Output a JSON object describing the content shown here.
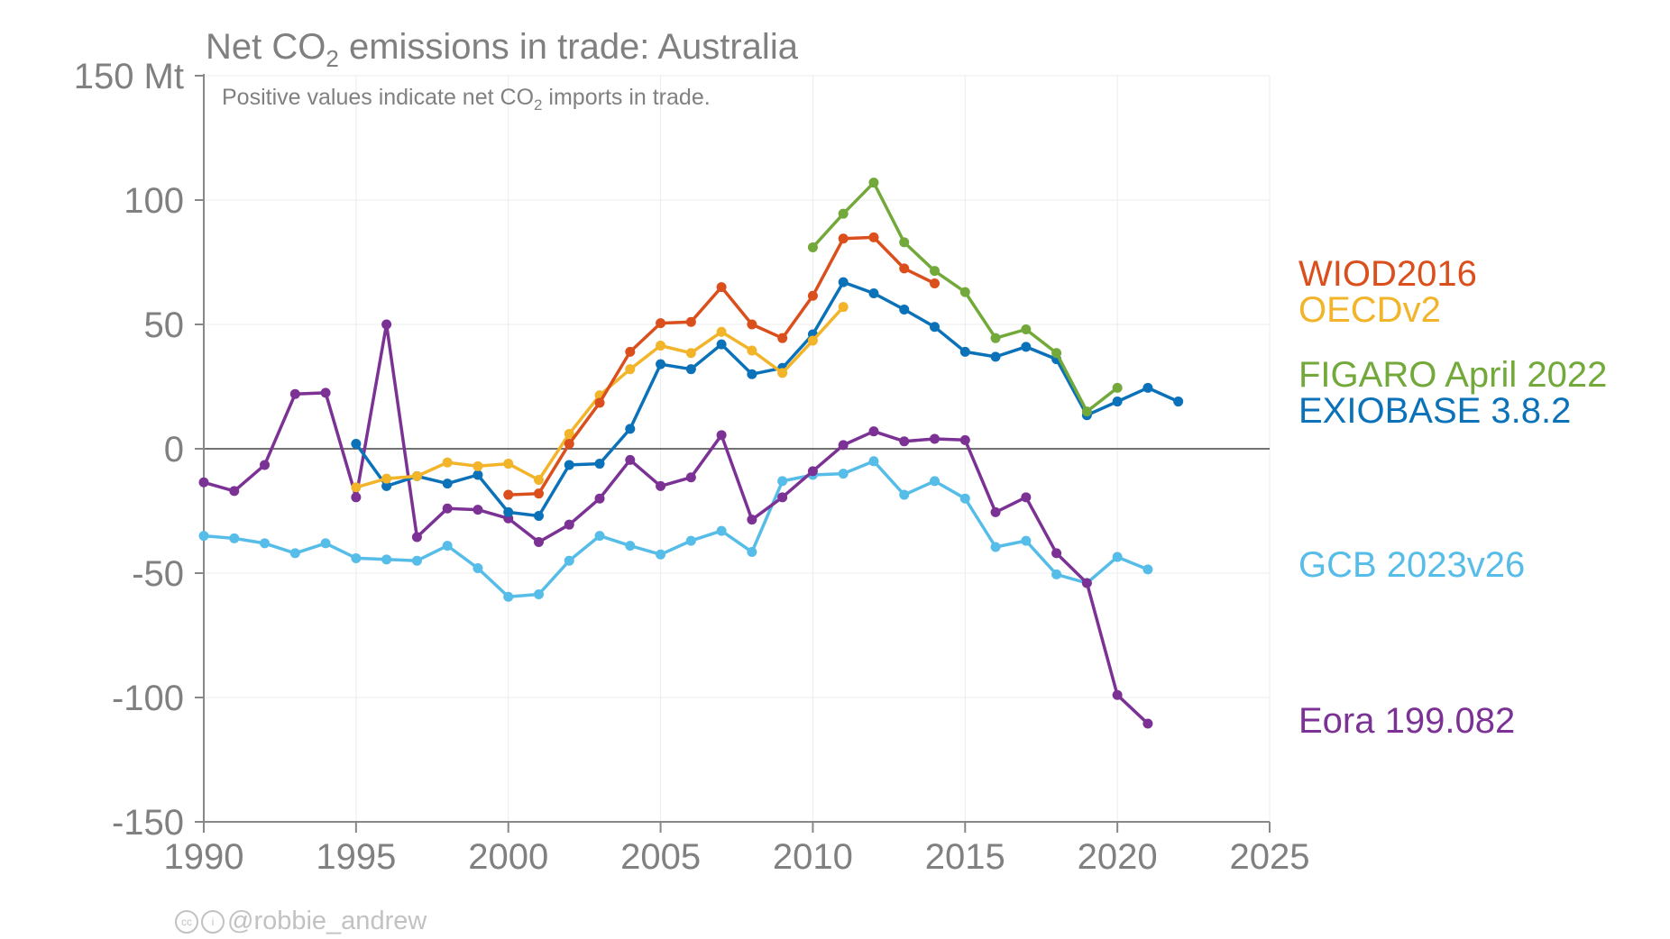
{
  "title_main": "Net CO",
  "title_sub": "2",
  "title_rest": " emissions in trade: Australia",
  "subtitle_main": "Positive values indicate net CO",
  "subtitle_sub": "2",
  "subtitle_rest": " imports in trade.",
  "credit": "@robbie_andrew",
  "chart_data": {
    "type": "line",
    "xlim": [
      1990,
      2025
    ],
    "ylim": [
      -150,
      150
    ],
    "x_ticks": [
      1990,
      1995,
      2000,
      2005,
      2010,
      2015,
      2020,
      2025
    ],
    "y_ticks": [
      150,
      100,
      50,
      0,
      -50,
      -100,
      -150
    ],
    "y_tick_labels": [
      "150 Mt",
      "100",
      "50",
      "0",
      "-50",
      "-100",
      "-150"
    ],
    "grid": true,
    "legend_position": "right",
    "series": [
      {
        "name": "GCB 2023v26",
        "color": "#56bce8",
        "x": [
          1990,
          1991,
          1992,
          1993,
          1994,
          1995,
          1996,
          1997,
          1998,
          1999,
          2000,
          2001,
          2002,
          2003,
          2004,
          2005,
          2006,
          2007,
          2008,
          2009,
          2010,
          2011,
          2012,
          2013,
          2014,
          2015,
          2016,
          2017,
          2018,
          2019,
          2020,
          2021
        ],
        "y": [
          -35,
          -36,
          -38,
          -42,
          -38,
          -44,
          -44.5,
          -45,
          -39,
          -48,
          -59.5,
          -58.5,
          -45,
          -35,
          -39,
          -42.5,
          -37,
          -33,
          -41.5,
          -13,
          -10.5,
          -10,
          -5,
          -18.5,
          -13,
          -20,
          -39.5,
          -37,
          -50.5,
          -54,
          -43.5,
          -48.5
        ]
      },
      {
        "name": "Eora 199.082",
        "color": "#7b3294",
        "x": [
          1990,
          1991,
          1992,
          1993,
          1994,
          1995,
          1996,
          1997,
          1998,
          1999,
          2000,
          2001,
          2002,
          2003,
          2004,
          2005,
          2006,
          2007,
          2008,
          2009,
          2010,
          2011,
          2012,
          2013,
          2014,
          2015,
          2016,
          2017,
          2018,
          2019,
          2020,
          2021
        ],
        "y": [
          -13.5,
          -17,
          -6.5,
          22,
          22.5,
          -19.5,
          50,
          -35.5,
          -24,
          -24.5,
          -28,
          -37.5,
          -30.5,
          -20,
          -4.5,
          -15,
          -11.5,
          5.5,
          -28.5,
          -19.5,
          -9,
          1.5,
          7,
          3,
          4,
          3.5,
          -25.5,
          -19.5,
          -42,
          -54,
          -99,
          -110.5
        ]
      },
      {
        "name": "EXIOBASE 3.8.2",
        "color": "#0b72b9",
        "x": [
          1995,
          1996,
          1997,
          1998,
          1999,
          2000,
          2001,
          2002,
          2003,
          2004,
          2005,
          2006,
          2007,
          2008,
          2009,
          2010,
          2011,
          2012,
          2013,
          2014,
          2015,
          2016,
          2017,
          2018,
          2019,
          2020,
          2021,
          2022
        ],
        "y": [
          2,
          -15,
          -11,
          -14,
          -10.5,
          -25.5,
          -27,
          -6.5,
          -6,
          8,
          34,
          32,
          42,
          30,
          32.5,
          46,
          67,
          62.5,
          56,
          49,
          39,
          37,
          41,
          36,
          13.5,
          19,
          24.5,
          19
        ]
      },
      {
        "name": "OECDv2",
        "color": "#f2b429",
        "x": [
          1995,
          1996,
          1997,
          1998,
          1999,
          2000,
          2001,
          2002,
          2003,
          2004,
          2005,
          2006,
          2007,
          2008,
          2009,
          2010,
          2011
        ],
        "y": [
          -15.5,
          -12,
          -11,
          -5.5,
          -7,
          -6,
          -12.5,
          6,
          21.5,
          32,
          41.5,
          38.5,
          47,
          39.5,
          30.5,
          43.5,
          57
        ]
      },
      {
        "name": "WIOD2016",
        "color": "#db4f1d",
        "x": [
          2000,
          2001,
          2002,
          2003,
          2004,
          2005,
          2006,
          2007,
          2008,
          2009,
          2010,
          2011,
          2012,
          2013,
          2014
        ],
        "y": [
          -18.5,
          -18,
          2,
          18.5,
          39,
          50.5,
          51,
          65,
          50,
          44.5,
          61.5,
          84.5,
          85,
          72.5,
          66.5
        ]
      },
      {
        "name": "FIGARO April 2022",
        "color": "#72a93a",
        "x": [
          2010,
          2011,
          2012,
          2013,
          2014,
          2015,
          2016,
          2017,
          2018,
          2019,
          2020
        ],
        "y": [
          81,
          94.5,
          107,
          83,
          71.5,
          63,
          44.5,
          48,
          38.5,
          15,
          24.5
        ]
      }
    ],
    "legend": [
      {
        "label": "WIOD2016",
        "color": "#db4f1d"
      },
      {
        "label": "OECDv2",
        "color": "#f2b429"
      },
      {
        "label": "FIGARO April 2022",
        "color": "#72a93a"
      },
      {
        "label": "EXIOBASE 3.8.2",
        "color": "#0b72b9"
      },
      {
        "label": "GCB 2023v26",
        "color": "#56bce8"
      },
      {
        "label": "Eora 199.082",
        "color": "#7b3294"
      }
    ]
  }
}
